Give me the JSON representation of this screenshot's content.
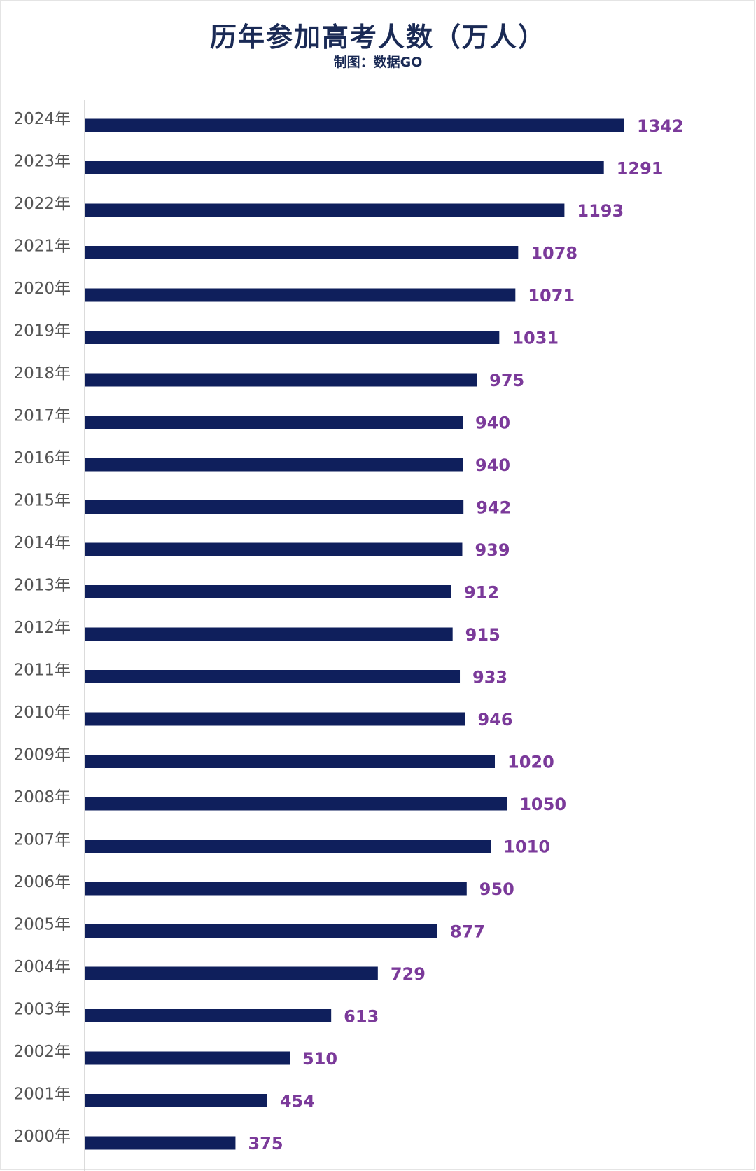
{
  "chart_data": {
    "type": "bar",
    "orientation": "horizontal",
    "title": "历年参加高考人数（万人）",
    "subtitle": "制图：数据GO",
    "categories": [
      "2024年",
      "2023年",
      "2022年",
      "2021年",
      "2020年",
      "2019年",
      "2018年",
      "2017年",
      "2016年",
      "2015年",
      "2014年",
      "2013年",
      "2012年",
      "2011年",
      "2010年",
      "2009年",
      "2008年",
      "2007年",
      "2006年",
      "2005年",
      "2004年",
      "2003年",
      "2002年",
      "2001年",
      "2000年"
    ],
    "values": [
      1342,
      1291,
      1193,
      1078,
      1071,
      1031,
      975,
      940,
      940,
      942,
      939,
      912,
      915,
      933,
      946,
      1020,
      1050,
      1010,
      950,
      877,
      729,
      613,
      510,
      454,
      375
    ],
    "xlim": [
      0,
      1342
    ],
    "grid": false,
    "colors": {
      "bar": "#0f1f5c",
      "value_label": "#7b3a9a",
      "title": "#1a2a55"
    }
  }
}
